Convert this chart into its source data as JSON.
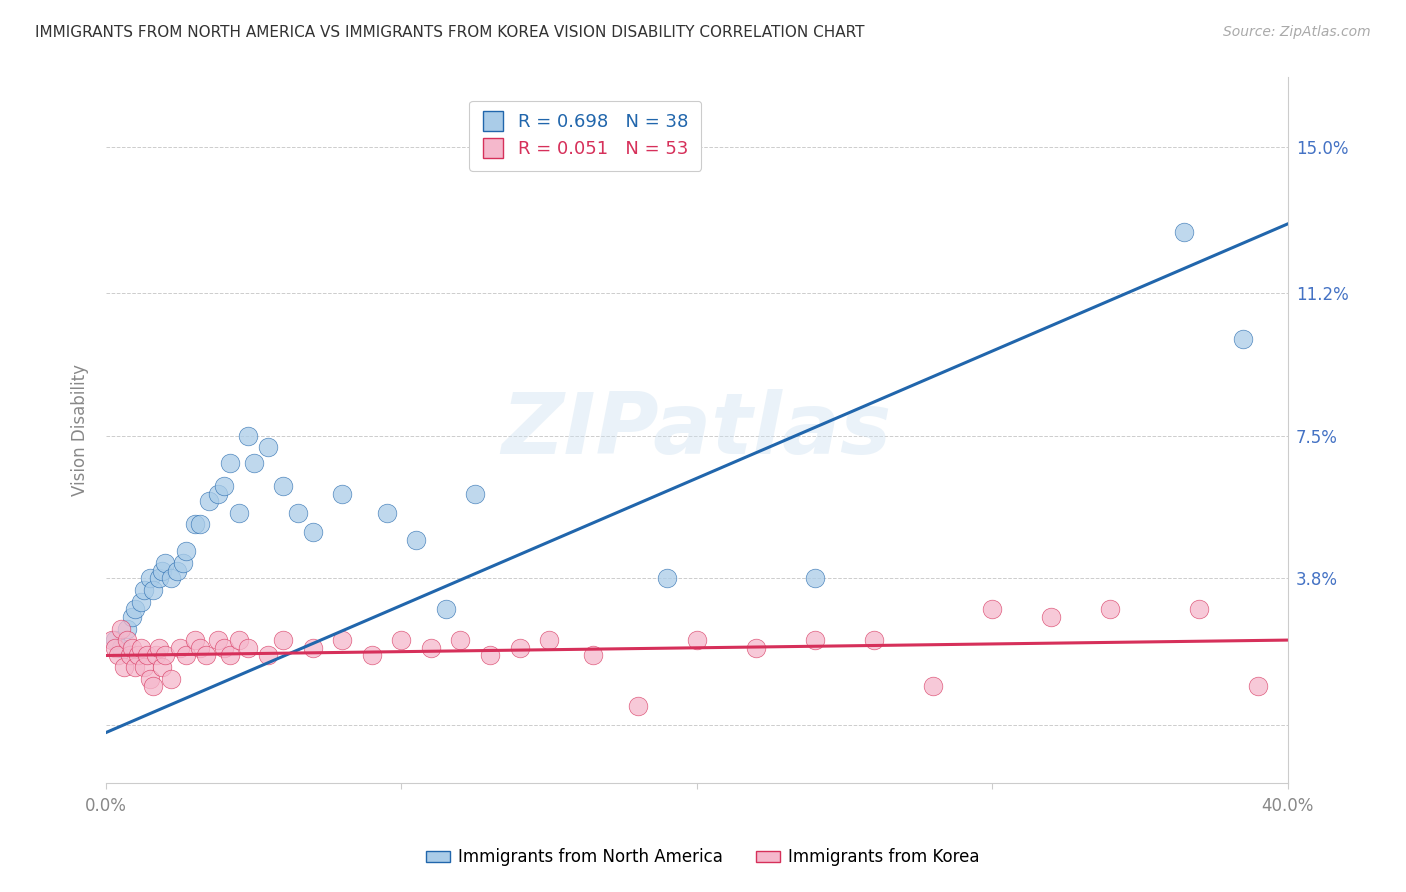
{
  "title": "IMMIGRANTS FROM NORTH AMERICA VS IMMIGRANTS FROM KOREA VISION DISABILITY CORRELATION CHART",
  "source": "Source: ZipAtlas.com",
  "ylabel": "Vision Disability",
  "right_yticks": [
    0.0,
    0.038,
    0.075,
    0.112,
    0.15
  ],
  "right_yticklabels": [
    "",
    "3.8%",
    "7.5%",
    "11.2%",
    "15.0%"
  ],
  "xlim": [
    0.0,
    0.4
  ],
  "ylim": [
    -0.015,
    0.168
  ],
  "blue_label": "Immigrants from North America",
  "pink_label": "Immigrants from Korea",
  "blue_R": "R = 0.698",
  "blue_N": "N = 38",
  "pink_R": "R = 0.051",
  "pink_N": "N = 53",
  "blue_color": "#aacce8",
  "pink_color": "#f5b8cc",
  "blue_line_color": "#2166ac",
  "pink_line_color": "#d6305a",
  "blue_line_intercept": -0.002,
  "blue_line_slope": 0.33,
  "pink_line_intercept": 0.018,
  "pink_line_slope": 0.01,
  "blue_points": [
    [
      0.003,
      0.022
    ],
    [
      0.005,
      0.02
    ],
    [
      0.007,
      0.025
    ],
    [
      0.009,
      0.028
    ],
    [
      0.01,
      0.03
    ],
    [
      0.012,
      0.032
    ],
    [
      0.013,
      0.035
    ],
    [
      0.015,
      0.038
    ],
    [
      0.016,
      0.035
    ],
    [
      0.018,
      0.038
    ],
    [
      0.019,
      0.04
    ],
    [
      0.02,
      0.042
    ],
    [
      0.022,
      0.038
    ],
    [
      0.024,
      0.04
    ],
    [
      0.026,
      0.042
    ],
    [
      0.027,
      0.045
    ],
    [
      0.03,
      0.052
    ],
    [
      0.032,
      0.052
    ],
    [
      0.035,
      0.058
    ],
    [
      0.038,
      0.06
    ],
    [
      0.04,
      0.062
    ],
    [
      0.042,
      0.068
    ],
    [
      0.045,
      0.055
    ],
    [
      0.048,
      0.075
    ],
    [
      0.05,
      0.068
    ],
    [
      0.055,
      0.072
    ],
    [
      0.06,
      0.062
    ],
    [
      0.065,
      0.055
    ],
    [
      0.07,
      0.05
    ],
    [
      0.08,
      0.06
    ],
    [
      0.095,
      0.055
    ],
    [
      0.105,
      0.048
    ],
    [
      0.115,
      0.03
    ],
    [
      0.125,
      0.06
    ],
    [
      0.19,
      0.038
    ],
    [
      0.24,
      0.038
    ],
    [
      0.365,
      0.128
    ],
    [
      0.385,
      0.1
    ]
  ],
  "pink_points": [
    [
      0.002,
      0.022
    ],
    [
      0.003,
      0.02
    ],
    [
      0.004,
      0.018
    ],
    [
      0.005,
      0.025
    ],
    [
      0.006,
      0.015
    ],
    [
      0.007,
      0.022
    ],
    [
      0.008,
      0.018
    ],
    [
      0.009,
      0.02
    ],
    [
      0.01,
      0.015
    ],
    [
      0.011,
      0.018
    ],
    [
      0.012,
      0.02
    ],
    [
      0.013,
      0.015
    ],
    [
      0.014,
      0.018
    ],
    [
      0.015,
      0.012
    ],
    [
      0.016,
      0.01
    ],
    [
      0.017,
      0.018
    ],
    [
      0.018,
      0.02
    ],
    [
      0.019,
      0.015
    ],
    [
      0.02,
      0.018
    ],
    [
      0.022,
      0.012
    ],
    [
      0.025,
      0.02
    ],
    [
      0.027,
      0.018
    ],
    [
      0.03,
      0.022
    ],
    [
      0.032,
      0.02
    ],
    [
      0.034,
      0.018
    ],
    [
      0.038,
      0.022
    ],
    [
      0.04,
      0.02
    ],
    [
      0.042,
      0.018
    ],
    [
      0.045,
      0.022
    ],
    [
      0.048,
      0.02
    ],
    [
      0.055,
      0.018
    ],
    [
      0.06,
      0.022
    ],
    [
      0.07,
      0.02
    ],
    [
      0.08,
      0.022
    ],
    [
      0.09,
      0.018
    ],
    [
      0.1,
      0.022
    ],
    [
      0.11,
      0.02
    ],
    [
      0.12,
      0.022
    ],
    [
      0.13,
      0.018
    ],
    [
      0.14,
      0.02
    ],
    [
      0.15,
      0.022
    ],
    [
      0.165,
      0.018
    ],
    [
      0.18,
      0.005
    ],
    [
      0.2,
      0.022
    ],
    [
      0.22,
      0.02
    ],
    [
      0.24,
      0.022
    ],
    [
      0.26,
      0.022
    ],
    [
      0.28,
      0.01
    ],
    [
      0.3,
      0.03
    ],
    [
      0.32,
      0.028
    ],
    [
      0.34,
      0.03
    ],
    [
      0.37,
      0.03
    ],
    [
      0.39,
      0.01
    ]
  ],
  "watermark": "ZIPatlas",
  "background_color": "#ffffff",
  "grid_color": "#c8c8c8"
}
